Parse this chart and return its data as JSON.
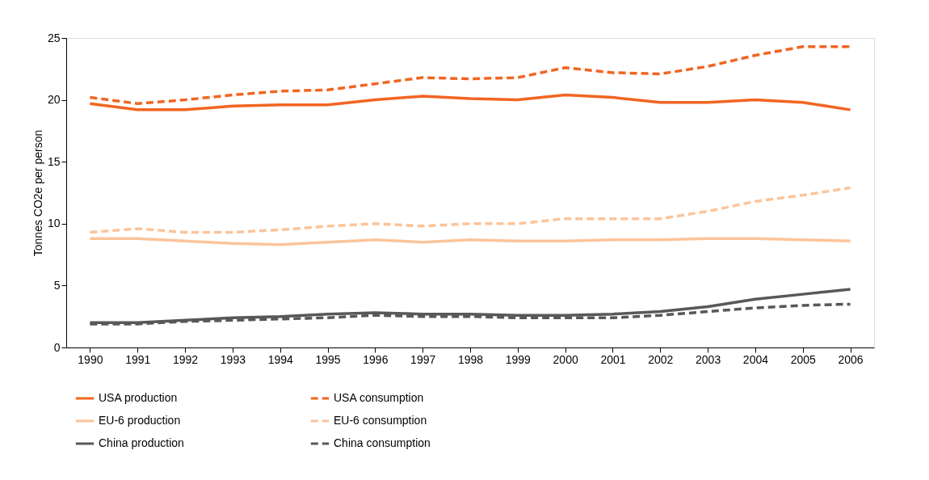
{
  "chart_data": {
    "type": "line",
    "ylabel": "Tonnes CO2e per person",
    "categories": [
      "1990",
      "1991",
      "1992",
      "1993",
      "1994",
      "1995",
      "1996",
      "1997",
      "1998",
      "1999",
      "2000",
      "2001",
      "2002",
      "2003",
      "2004",
      "2005",
      "2006"
    ],
    "ylim": [
      0,
      25
    ],
    "yticks": [
      0,
      5,
      10,
      15,
      20,
      25
    ],
    "grid": false,
    "legend": "bottom",
    "marker": "none",
    "series": [
      {
        "name": "USA production",
        "color": "#f26522",
        "line_style": "solid",
        "values": [
          19.7,
          19.2,
          19.2,
          19.5,
          19.6,
          19.6,
          20.0,
          20.3,
          20.1,
          20.0,
          20.4,
          20.2,
          19.8,
          19.8,
          20.0,
          19.8,
          19.2
        ]
      },
      {
        "name": "USA consumption",
        "color": "#f26522",
        "line_style": "dashed",
        "values": [
          20.2,
          19.7,
          20.0,
          20.4,
          20.7,
          20.8,
          21.3,
          21.8,
          21.7,
          21.8,
          22.6,
          22.2,
          22.1,
          22.7,
          23.6,
          24.3,
          24.3
        ]
      },
      {
        "name": "EU-6 production",
        "color": "#fbc49a",
        "line_style": "solid",
        "values": [
          8.8,
          8.8,
          8.6,
          8.4,
          8.3,
          8.5,
          8.7,
          8.5,
          8.7,
          8.6,
          8.6,
          8.7,
          8.7,
          8.8,
          8.8,
          8.7,
          8.6
        ]
      },
      {
        "name": "EU-6 consumption",
        "color": "#fbc49a",
        "line_style": "dashed",
        "values": [
          9.3,
          9.6,
          9.3,
          9.3,
          9.5,
          9.8,
          10.0,
          9.8,
          10.0,
          10.0,
          10.4,
          10.4,
          10.4,
          11.0,
          11.8,
          12.3,
          12.9
        ]
      },
      {
        "name": "China production",
        "color": "#58585a",
        "line_style": "solid",
        "values": [
          2.0,
          2.0,
          2.2,
          2.4,
          2.5,
          2.7,
          2.8,
          2.7,
          2.7,
          2.6,
          2.6,
          2.7,
          2.9,
          3.3,
          3.9,
          4.3,
          4.7
        ]
      },
      {
        "name": "China consumption",
        "color": "#58585a",
        "line_style": "dashed",
        "values": [
          1.9,
          1.9,
          2.1,
          2.2,
          2.3,
          2.4,
          2.6,
          2.5,
          2.5,
          2.4,
          2.4,
          2.4,
          2.6,
          2.9,
          3.2,
          3.4,
          3.5
        ]
      }
    ]
  }
}
